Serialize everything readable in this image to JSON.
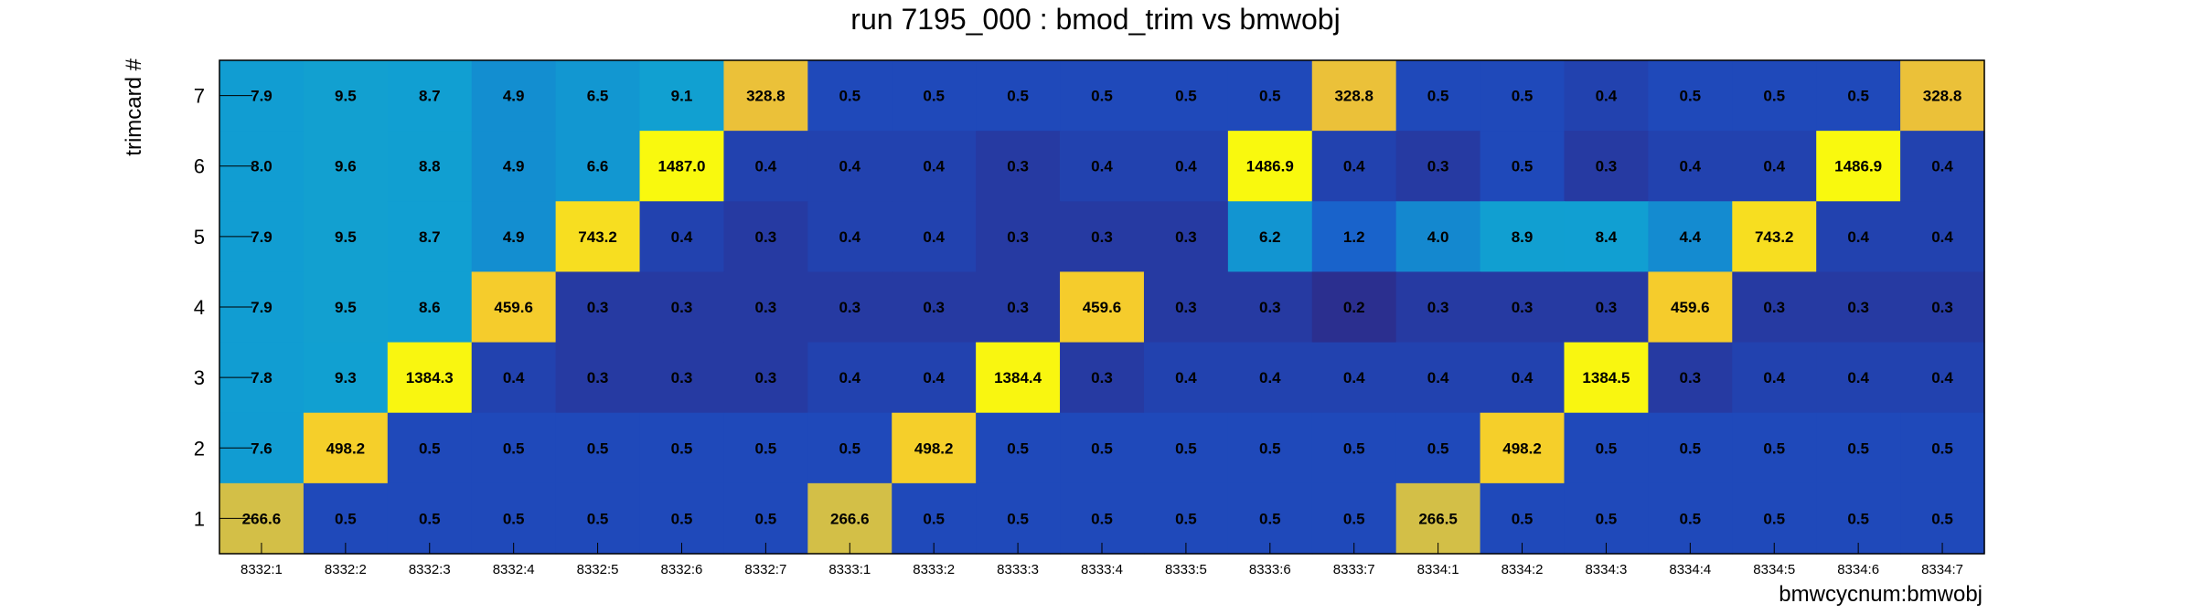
{
  "chart_data": {
    "type": "heatmap",
    "title": "run 7195_000 : bmod_trim vs bmwobj",
    "xlabel": "bmwcycnum:bmwobj",
    "ylabel": "trimcard #",
    "x_categories": [
      "8332:1",
      "8332:2",
      "8332:3",
      "8332:4",
      "8332:5",
      "8332:6",
      "8332:7",
      "8333:1",
      "8333:2",
      "8333:3",
      "8333:4",
      "8333:5",
      "8333:6",
      "8333:7",
      "8334:1",
      "8334:2",
      "8334:3",
      "8334:4",
      "8334:5",
      "8334:6",
      "8334:7"
    ],
    "y_categories": [
      "1",
      "2",
      "3",
      "4",
      "5",
      "6",
      "7"
    ],
    "rows": [
      {
        "y": "7",
        "values": [
          7.9,
          9.5,
          8.7,
          4.9,
          6.5,
          9.1,
          328.8,
          0.5,
          0.5,
          0.5,
          0.5,
          0.5,
          0.5,
          328.8,
          0.5,
          0.5,
          0.4,
          0.5,
          0.5,
          0.5,
          328.8
        ]
      },
      {
        "y": "6",
        "values": [
          8.0,
          9.6,
          8.8,
          4.9,
          6.6,
          1487.0,
          0.4,
          0.4,
          0.4,
          0.3,
          0.4,
          0.4,
          1486.9,
          0.4,
          0.3,
          0.5,
          0.3,
          0.4,
          0.4,
          1486.9,
          0.4
        ]
      },
      {
        "y": "5",
        "values": [
          7.9,
          9.5,
          8.7,
          4.9,
          743.2,
          0.4,
          0.3,
          0.4,
          0.4,
          0.3,
          0.3,
          0.3,
          6.2,
          1.2,
          4.0,
          8.9,
          8.4,
          4.4,
          743.2,
          0.4,
          0.4
        ]
      },
      {
        "y": "4",
        "values": [
          7.9,
          9.5,
          8.6,
          459.6,
          0.3,
          0.3,
          0.3,
          0.3,
          0.3,
          0.3,
          459.6,
          0.3,
          0.3,
          0.2,
          0.3,
          0.3,
          0.3,
          459.6,
          0.3,
          0.3,
          0.3
        ]
      },
      {
        "y": "3",
        "values": [
          7.8,
          9.3,
          1384.3,
          0.4,
          0.3,
          0.3,
          0.3,
          0.4,
          0.4,
          1384.4,
          0.3,
          0.4,
          0.4,
          0.4,
          0.4,
          0.4,
          1384.5,
          0.3,
          0.4,
          0.4,
          0.4
        ]
      },
      {
        "y": "2",
        "values": [
          7.6,
          498.2,
          0.5,
          0.5,
          0.5,
          0.5,
          0.5,
          0.5,
          498.2,
          0.5,
          0.5,
          0.5,
          0.5,
          0.5,
          0.5,
          498.2,
          0.5,
          0.5,
          0.5,
          0.5,
          0.5
        ]
      },
      {
        "y": "1",
        "values": [
          266.6,
          0.5,
          0.5,
          0.5,
          0.5,
          0.5,
          0.5,
          266.6,
          0.5,
          0.5,
          0.5,
          0.5,
          0.5,
          0.5,
          266.5,
          0.5,
          0.5,
          0.5,
          0.5,
          0.5,
          0.5
        ]
      }
    ],
    "color_scale": {
      "type": "log",
      "stops": [
        "#2b2f8f",
        "#1b52c9",
        "#119fd2",
        "#1aaeb8",
        "#f4c233",
        "#f9f90e"
      ]
    },
    "grid": false,
    "legend": "none"
  }
}
